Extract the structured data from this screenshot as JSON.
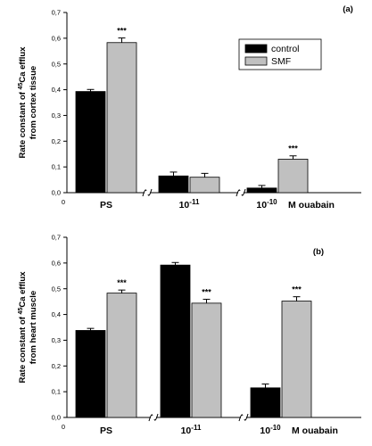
{
  "colors": {
    "control": "#000000",
    "smf": "#c0c0c0",
    "axis": "#000000"
  },
  "chart_data": [
    {
      "type": "bar",
      "panel_label": "(a)",
      "ylabel_lines": [
        "Rate constant of 45Ca efflux",
        "from cortex tissue"
      ],
      "ylim": [
        0,
        0.7
      ],
      "yticks": [
        "0,0",
        "0,1",
        "0,2",
        "0,3",
        "0,4",
        "0,5",
        "0,6",
        "0,7"
      ],
      "x_origin_label": "0",
      "categories": [
        "PS",
        "10-11",
        "10-10"
      ],
      "category_suffix": "M ouabain",
      "legend": {
        "position": "top-right"
      },
      "series": [
        {
          "name": "control",
          "values": [
            0.393,
            0.065,
            0.018
          ],
          "errors": [
            0.008,
            0.015,
            0.01
          ]
        },
        {
          "name": "SMF",
          "values": [
            0.583,
            0.06,
            0.13
          ],
          "errors": [
            0.018,
            0.015,
            0.013
          ]
        }
      ],
      "significance": [
        {
          "category": 0,
          "series": 1,
          "label": "***"
        },
        {
          "category": 2,
          "series": 1,
          "label": "***"
        }
      ]
    },
    {
      "type": "bar",
      "panel_label": "(b)",
      "ylabel_lines": [
        "Rate constant of 45Ca efflux",
        "from heart muscle"
      ],
      "ylim": [
        0,
        0.7
      ],
      "yticks": [
        "0,0",
        "0,1",
        "0,2",
        "0,3",
        "0,4",
        "0,5",
        "0,6",
        "0,7"
      ],
      "x_origin_label": "0",
      "categories": [
        "PS",
        "10-11",
        "10-10"
      ],
      "category_suffix": "M ouabain",
      "series": [
        {
          "name": "control",
          "values": [
            0.338,
            0.592,
            0.115
          ],
          "errors": [
            0.008,
            0.01,
            0.015
          ]
        },
        {
          "name": "SMF",
          "values": [
            0.483,
            0.444,
            0.452
          ],
          "errors": [
            0.012,
            0.015,
            0.017
          ]
        }
      ],
      "significance": [
        {
          "category": 0,
          "series": 1,
          "label": "***"
        },
        {
          "category": 1,
          "series": 1,
          "label": "***"
        },
        {
          "category": 2,
          "series": 1,
          "label": "***"
        }
      ]
    }
  ]
}
